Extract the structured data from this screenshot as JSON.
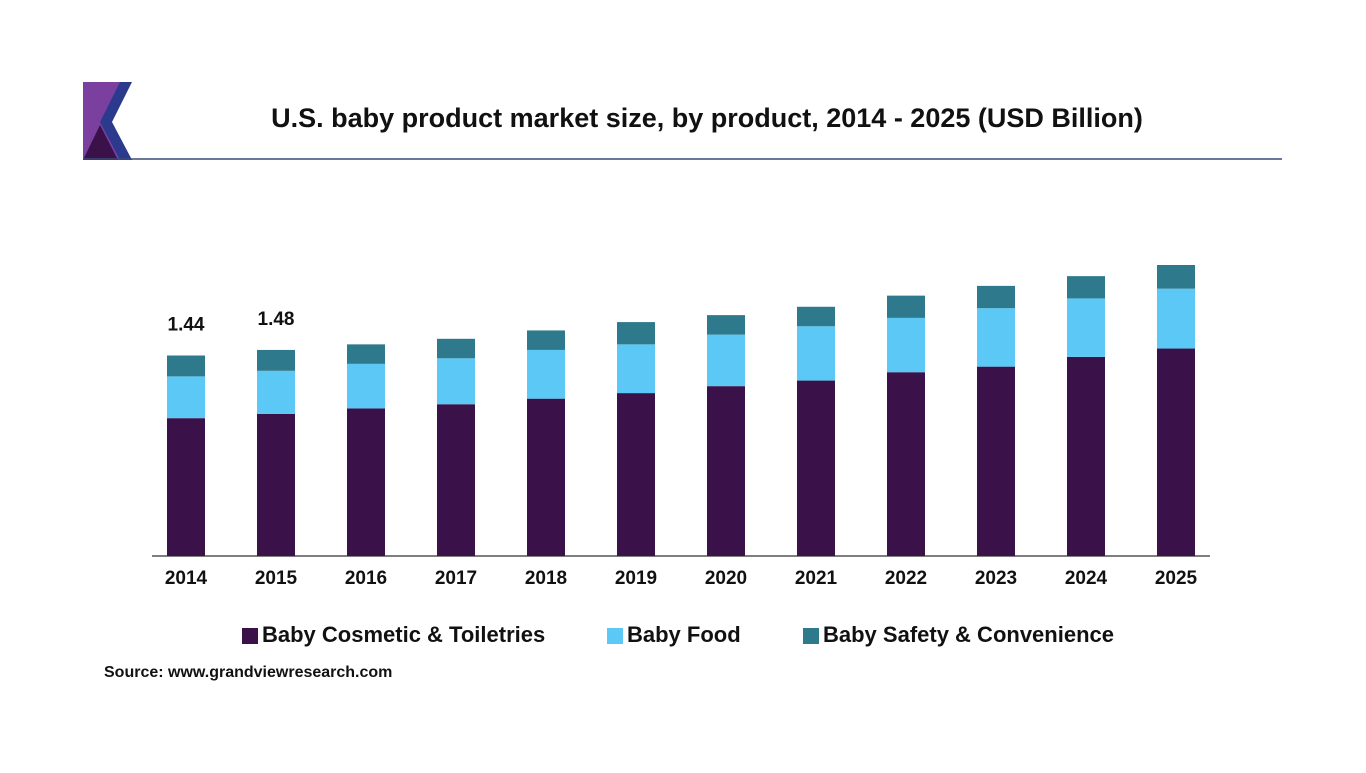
{
  "chart_data": {
    "type": "stacked-bar",
    "title": "U.S. baby product market size, by product, 2014 - 2025 (USD Billion)",
    "source": "Source: www.grandviewresearch.com",
    "categories": [
      "2014",
      "2015",
      "2016",
      "2017",
      "2018",
      "2019",
      "2020",
      "2021",
      "2022",
      "2023",
      "2024",
      "2025"
    ],
    "series": [
      {
        "name": "Baby Cosmetic & Toiletries",
        "color": "#3a1249",
        "values": [
          0.99,
          1.02,
          1.06,
          1.09,
          1.13,
          1.17,
          1.22,
          1.26,
          1.32,
          1.36,
          1.43,
          1.49
        ]
      },
      {
        "name": "Baby Food",
        "color": "#5bc8f5",
        "values": [
          0.3,
          0.31,
          0.32,
          0.33,
          0.35,
          0.35,
          0.37,
          0.39,
          0.39,
          0.42,
          0.42,
          0.43
        ]
      },
      {
        "name": "Baby Safety & Convenience",
        "color": "#2e7a8c",
        "values": [
          0.15,
          0.15,
          0.14,
          0.14,
          0.14,
          0.16,
          0.14,
          0.14,
          0.16,
          0.16,
          0.16,
          0.17
        ]
      }
    ],
    "totals": [
      1.44,
      1.48
    ]
  }
}
